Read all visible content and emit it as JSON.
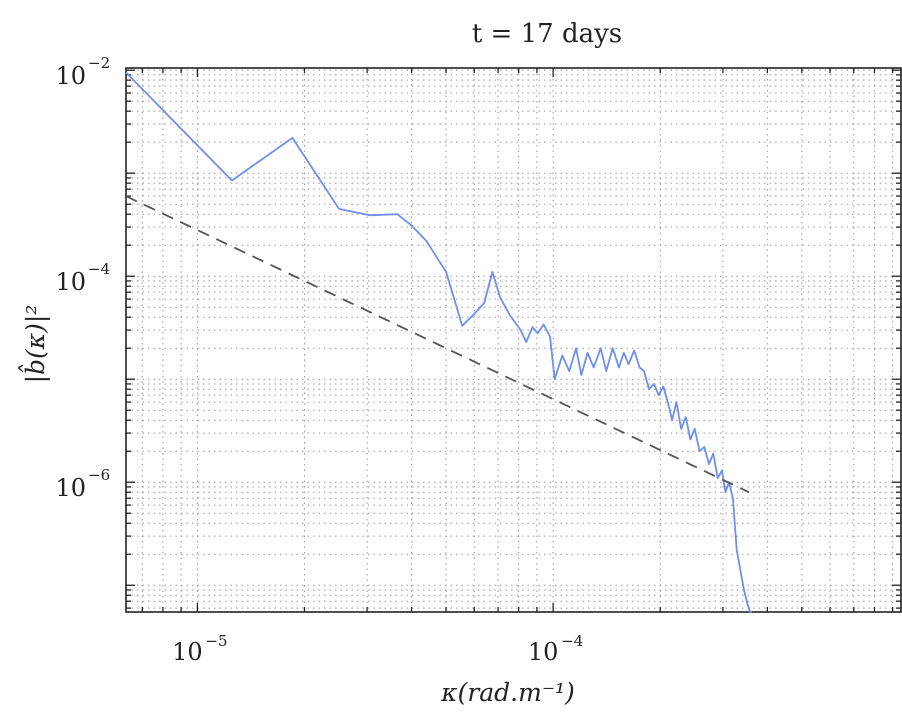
{
  "chart_data": {
    "type": "line",
    "title": "t = 17 days",
    "xlabel": "κ(rad.m⁻¹)",
    "ylabel": "|b̂(κ)|²",
    "xscale": "log",
    "yscale": "log",
    "xlim": [
      6.3e-06,
      0.00095
    ],
    "ylim": [
      5.5e-08,
      0.0105
    ],
    "grid": true,
    "x_major_ticks": [
      {
        "value": 1e-05,
        "base": "10",
        "exp": "−5"
      },
      {
        "value": 0.0001,
        "base": "10",
        "exp": "−4"
      }
    ],
    "y_major_ticks": [
      {
        "value": 0.01,
        "base": "10",
        "exp": "−2"
      },
      {
        "value": 0.0001,
        "base": "10",
        "exp": "−4"
      },
      {
        "value": 1e-06,
        "base": "10",
        "exp": "−6"
      }
    ],
    "series": [
      {
        "color": "#6e8ff0",
        "style": "solid",
        "x": [
          6.3e-06,
          1.25e-05,
          1.85e-05,
          2.5e-05,
          3.05e-05,
          3.65e-05,
          4e-05,
          4.4e-05,
          5e-05,
          5.55e-05,
          6e-05,
          6.4e-05,
          6.75e-05,
          7.1e-05,
          7.55e-05,
          8.1e-05,
          8.4e-05,
          8.75e-05,
          9.05e-05,
          9.4e-05,
          9.8e-05,
          0.000101,
          0.000106,
          0.000111,
          0.000116,
          0.00012,
          0.000125,
          0.00013,
          0.000136,
          0.000141,
          0.000147,
          0.000153,
          0.000158,
          0.000163,
          0.000169,
          0.000175,
          0.00018,
          0.000186,
          0.000192,
          0.000198,
          0.000204,
          0.00021,
          0.000216,
          0.000222,
          0.000229,
          0.000236,
          0.000243,
          0.00025,
          0.000258,
          0.000266,
          0.000274,
          0.000282,
          0.00029,
          0.000298,
          0.000305,
          0.000312,
          0.00032,
          0.000328,
          0.000336,
          0.000344,
          0.000352,
          0.000358,
          0.000362
        ],
        "y": [
          0.0095,
          0.00085,
          0.0022,
          0.00045,
          0.00039,
          0.0004,
          0.00031,
          0.00022,
          0.00011,
          3.3e-05,
          4.3e-05,
          5.5e-05,
          0.00011,
          6.2e-05,
          4.2e-05,
          3e-05,
          2.3e-05,
          3.2e-05,
          2.8e-05,
          3.4e-05,
          2.6e-05,
          1e-05,
          1.7e-05,
          1.2e-05,
          2e-05,
          1.1e-05,
          1.8e-05,
          1.3e-05,
          2e-05,
          1.2e-05,
          2e-05,
          1.3e-05,
          1.8e-05,
          1.4e-05,
          1.9e-05,
          1.3e-05,
          1.2e-05,
          8e-06,
          9e-06,
          7e-06,
          8.5e-06,
          6e-06,
          4e-06,
          6e-06,
          3.3e-06,
          4.3e-06,
          2.6e-06,
          3.3e-06,
          2e-06,
          2.2e-06,
          1.5e-06,
          1.9e-06,
          1.1e-06,
          1.3e-06,
          8e-07,
          1e-06,
          7e-07,
          2.2e-07,
          1.4e-07,
          9e-08,
          6.5e-08,
          5.5e-08,
          5.5e-08
        ]
      },
      {
        "color": "#555555",
        "style": "dashed",
        "x": [
          6.3e-06,
          0.000355
        ],
        "y": [
          0.0006,
          8e-07
        ]
      }
    ]
  }
}
